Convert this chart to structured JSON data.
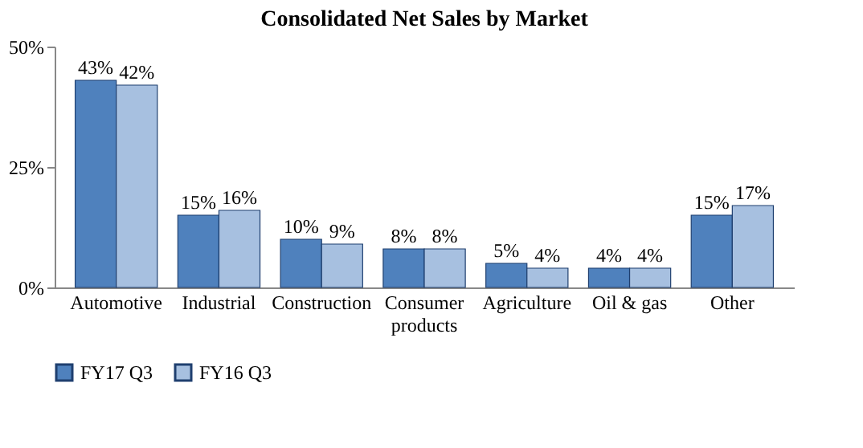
{
  "chart_data": {
    "type": "bar",
    "title": "Consolidated Net Sales by Market",
    "categories": [
      "Automotive",
      "Industrial",
      "Construction",
      "Consumer products",
      "Agriculture",
      "Oil & gas",
      "Other"
    ],
    "series": [
      {
        "name": "FY17 Q3",
        "color": "#4f81bd",
        "values": [
          43,
          15,
          10,
          8,
          5,
          4,
          15
        ],
        "value_labels": [
          "43%",
          "15%",
          "10%",
          "8%",
          "5%",
          "4%",
          "15%"
        ]
      },
      {
        "name": "FY16 Q3",
        "color": "#a7c0e0",
        "values": [
          42,
          16,
          9,
          8,
          4,
          4,
          17
        ],
        "value_labels": [
          "42%",
          "16%",
          "9%",
          "8%",
          "4%",
          "4%",
          "17%"
        ]
      }
    ],
    "ylim": [
      0,
      50
    ],
    "yticks": [
      {
        "value": 0,
        "label": "0%"
      },
      {
        "value": 25,
        "label": "25%"
      },
      {
        "value": 50,
        "label": "50%"
      }
    ],
    "grid": false,
    "legend": "bottom"
  }
}
